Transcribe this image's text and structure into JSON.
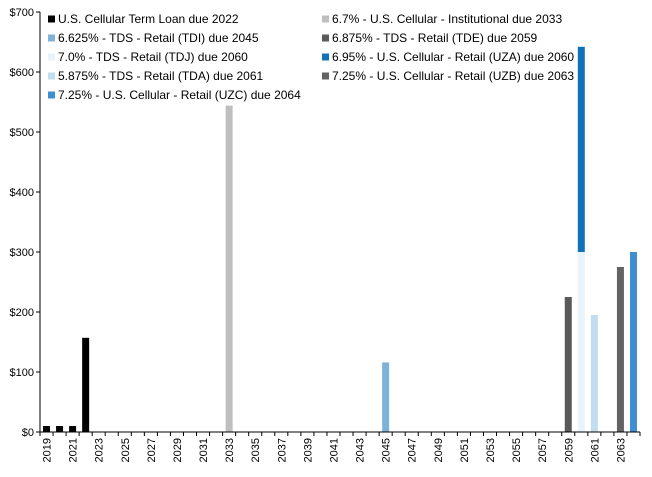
{
  "chart_data": {
    "type": "bar",
    "stacked": true,
    "title": "",
    "xlabel": "",
    "ylabel": "",
    "ylim": [
      0,
      700
    ],
    "yticks": [
      "$0",
      "$100",
      "$200",
      "$300",
      "$400",
      "$500",
      "$600",
      "$700"
    ],
    "grid": false,
    "legend_position": "top",
    "categories": [
      "2019",
      "2020",
      "2021",
      "2022",
      "2023",
      "2024",
      "2025",
      "2026",
      "2027",
      "2028",
      "2029",
      "2030",
      "2031",
      "2032",
      "2033",
      "2034",
      "2035",
      "2036",
      "2037",
      "2038",
      "2039",
      "2040",
      "2041",
      "2042",
      "2043",
      "2044",
      "2045",
      "2046",
      "2047",
      "2048",
      "2049",
      "2050",
      "2051",
      "2052",
      "2053",
      "2054",
      "2055",
      "2056",
      "2057",
      "2058",
      "2059",
      "2060",
      "2061",
      "2062",
      "2063",
      "2064"
    ],
    "xtick_labels": [
      "2019",
      "2021",
      "2023",
      "2025",
      "2027",
      "2029",
      "2031",
      "2033",
      "2035",
      "2037",
      "2039",
      "2041",
      "2043",
      "2045",
      "2047",
      "2049",
      "2051",
      "2053",
      "2055",
      "2057",
      "2059",
      "2061",
      "2063"
    ],
    "series": [
      {
        "name": "U.S. Cellular Term Loan due 2022",
        "color": "#000000",
        "points": [
          {
            "x": "2019",
            "y": 10
          },
          {
            "x": "2020",
            "y": 10
          },
          {
            "x": "2021",
            "y": 10
          },
          {
            "x": "2022",
            "y": 157
          }
        ]
      },
      {
        "name": "6.7% - U.S. Cellular - Institutional due 2033",
        "color": "#bfbfbf",
        "points": [
          {
            "x": "2033",
            "y": 544
          }
        ]
      },
      {
        "name": "6.625% - TDS - Retail (TDI) due 2045",
        "color": "#7fb2d9",
        "points": [
          {
            "x": "2045",
            "y": 116
          }
        ]
      },
      {
        "name": "6.875% - TDS - Retail (TDE) due 2059",
        "color": "#595959",
        "points": [
          {
            "x": "2059",
            "y": 225
          }
        ]
      },
      {
        "name": "7.0% - TDS - Retail (TDJ) due 2060",
        "color": "#eaf3fb",
        "points": [
          {
            "x": "2060",
            "y": 300
          }
        ]
      },
      {
        "name": "6.95% - U.S. Cellular - Retail (UZA) due 2060",
        "color": "#0f72bb",
        "points": [
          {
            "x": "2060",
            "y": 342
          }
        ]
      },
      {
        "name": "5.875% - TDS - Retail (TDA) due 2061",
        "color": "#c3ddf0",
        "points": [
          {
            "x": "2061",
            "y": 195
          }
        ]
      },
      {
        "name": "7.25% - U.S. Cellular - Retail (UZB) due 2063",
        "color": "#636363",
        "points": [
          {
            "x": "2063",
            "y": 275
          }
        ]
      },
      {
        "name": "7.25% - U.S. Cellular - Retail (UZC) due 2064",
        "color": "#3e8fcf",
        "points": [
          {
            "x": "2064",
            "y": 300
          }
        ]
      }
    ]
  }
}
